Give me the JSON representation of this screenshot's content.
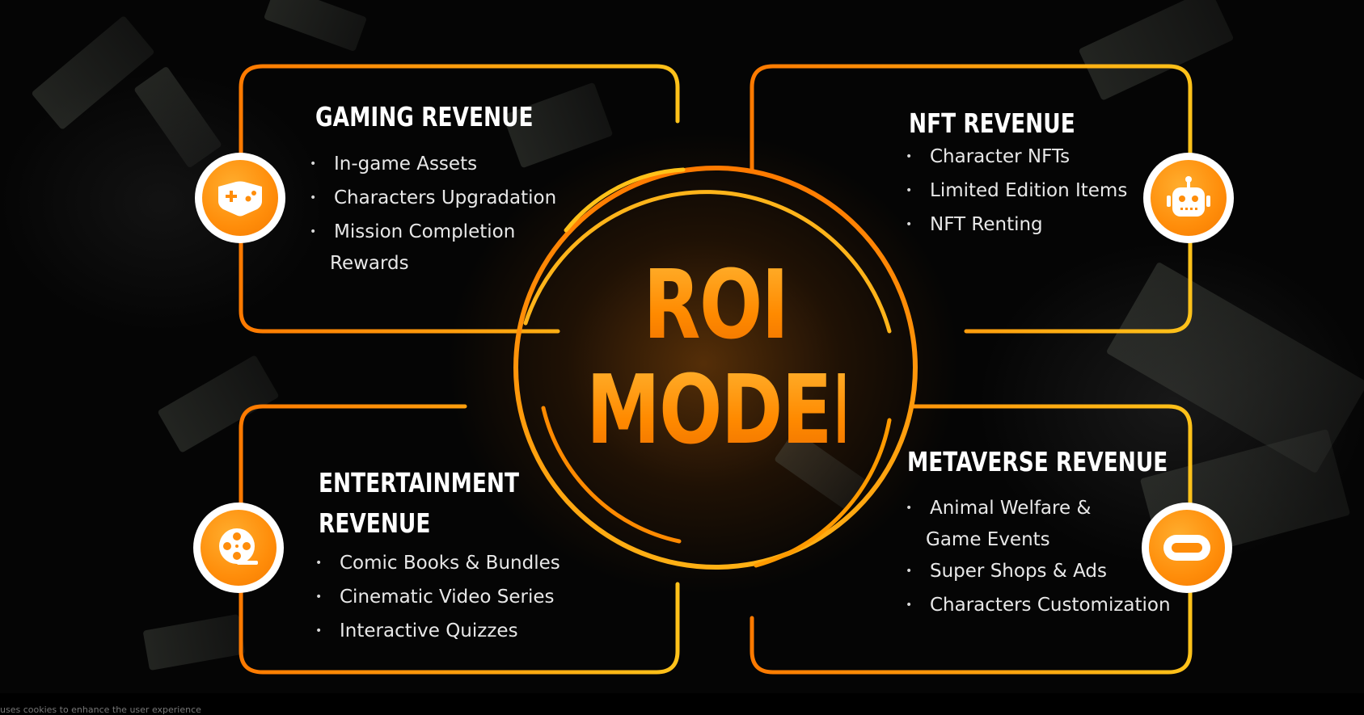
{
  "center": {
    "line1": "ROI",
    "line2": "MODEL"
  },
  "gaming": {
    "title": "GAMING REVENUE",
    "items": [
      "In-game Assets",
      "Characters Upgradation",
      "Mission Completion"
    ],
    "item3_cont": "Rewards"
  },
  "nft": {
    "title": "NFT REVENUE",
    "items": [
      "Character NFTs",
      "Limited Edition Items",
      "NFT Renting"
    ]
  },
  "entertainment": {
    "title_line1": "ENTERTAINMENT",
    "title_line2": "REVENUE",
    "items": [
      "Comic Books & Bundles",
      "Cinematic Video Series",
      "Interactive Quizzes"
    ]
  },
  "metaverse": {
    "title": "METAVERSE REVENUE",
    "items": [
      "Animal Welfare &",
      "Super Shops & Ads",
      "Characters Customization"
    ],
    "item1_cont": "Game Events"
  },
  "icons": {
    "gaming": "gamepad-icon",
    "nft": "robot-icon",
    "entertainment": "film-reel-icon",
    "metaverse": "vr-headset-icon"
  },
  "colors": {
    "accent_orange": "#ff8a00",
    "accent_yellow": "#ffc21a",
    "background": "#000000"
  },
  "footer": {
    "text": "uses cookies to enhance the user experience"
  }
}
